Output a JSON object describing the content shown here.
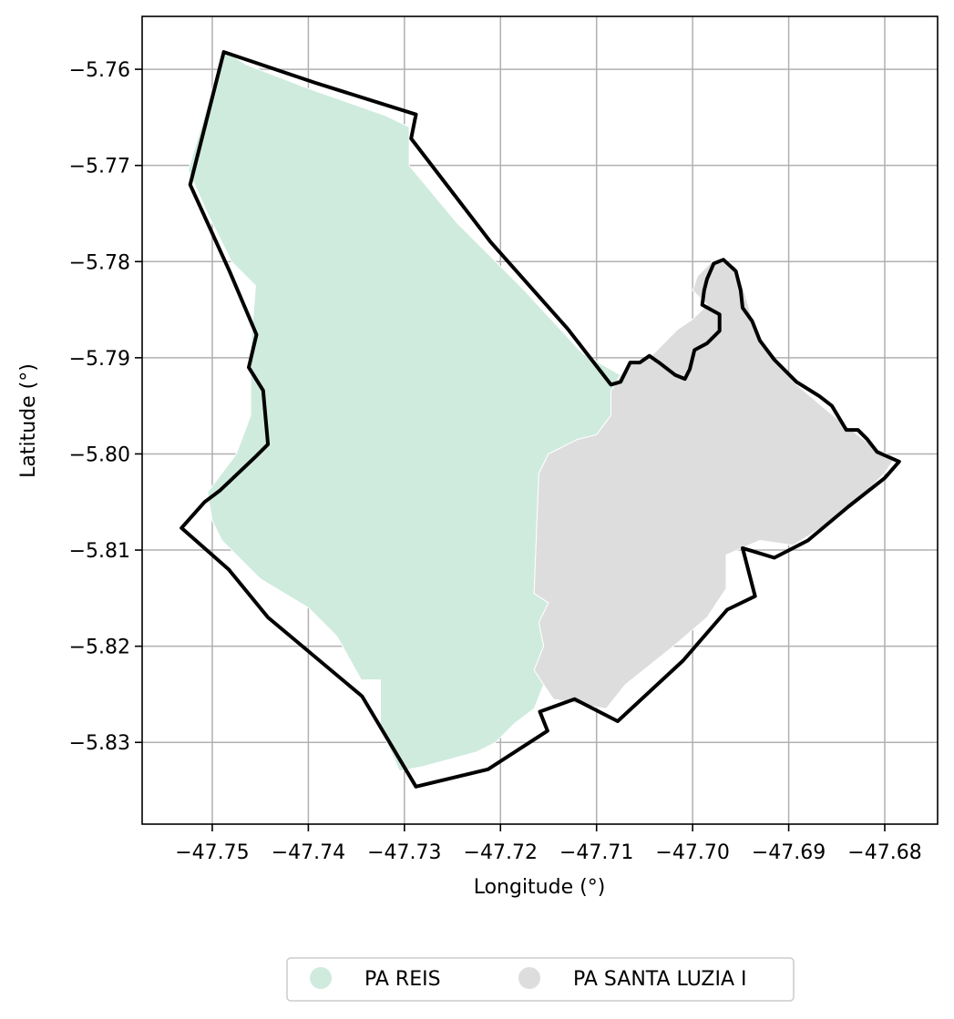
{
  "chart_data": {
    "type": "map",
    "xlabel": "Longitude (°)",
    "ylabel": "Latitude (°)",
    "xlim": [
      -47.7573,
      -47.6745
    ],
    "ylim": [
      -5.8385,
      -5.7545
    ],
    "x_ticks": [
      -47.75,
      -47.74,
      -47.73,
      -47.72,
      -47.71,
      -47.7,
      -47.69,
      -47.68
    ],
    "x_tick_labels": [
      "−47.75",
      "−47.74",
      "−47.73",
      "−47.72",
      "−47.71",
      "−47.70",
      "−47.69",
      "−47.68"
    ],
    "y_ticks": [
      -5.76,
      -5.77,
      -5.78,
      -5.79,
      -5.8,
      -5.81,
      -5.82,
      -5.83
    ],
    "y_tick_labels": [
      "−5.76",
      "−5.77",
      "−5.78",
      "−5.79",
      "−5.80",
      "−5.81",
      "−5.82",
      "−5.83"
    ],
    "grid": true,
    "legend_position": "bottom-center",
    "colors": {
      "pa_reis": "#cfebde",
      "pa_santa_luzia": "#dddddd",
      "boundary": "#000000",
      "grid": "#b0b0b0",
      "axes": "#000000"
    },
    "series": [
      {
        "name": "PA REIS",
        "color": "#cfebde",
        "polygon": [
          [
            -47.7488,
            -5.758
          ],
          [
            -47.7525,
            -5.7705
          ],
          [
            -47.7505,
            -5.775
          ],
          [
            -47.748,
            -5.78
          ],
          [
            -47.7455,
            -5.7825
          ],
          [
            -47.746,
            -5.789
          ],
          [
            -47.746,
            -5.796
          ],
          [
            -47.7475,
            -5.8
          ],
          [
            -47.7505,
            -5.804
          ],
          [
            -47.75,
            -5.807
          ],
          [
            -47.749,
            -5.809
          ],
          [
            -47.747,
            -5.811
          ],
          [
            -47.745,
            -5.813
          ],
          [
            -47.74,
            -5.816
          ],
          [
            -47.737,
            -5.819
          ],
          [
            -47.7345,
            -5.8235
          ],
          [
            -47.7325,
            -5.8235
          ],
          [
            -47.7325,
            -5.8285
          ],
          [
            -47.7305,
            -5.833
          ],
          [
            -47.728,
            -5.8325
          ],
          [
            -47.7225,
            -5.831
          ],
          [
            -47.7205,
            -5.83
          ],
          [
            -47.7185,
            -5.828
          ],
          [
            -47.7165,
            -5.8265
          ],
          [
            -47.7155,
            -5.824
          ],
          [
            -47.7165,
            -5.8225
          ],
          [
            -47.7155,
            -5.82
          ],
          [
            -47.716,
            -5.8175
          ],
          [
            -47.715,
            -5.8155
          ],
          [
            -47.7165,
            -5.8145
          ],
          [
            -47.716,
            -5.802
          ],
          [
            -47.715,
            -5.8
          ],
          [
            -47.712,
            -5.7985
          ],
          [
            -47.71,
            -5.798
          ],
          [
            -47.7085,
            -5.796
          ],
          [
            -47.7085,
            -5.7935
          ],
          [
            -47.7075,
            -5.7918
          ],
          [
            -47.7115,
            -5.7895
          ],
          [
            -47.7175,
            -5.783
          ],
          [
            -47.7245,
            -5.776
          ],
          [
            -47.7295,
            -5.77
          ],
          [
            -47.7295,
            -5.766
          ],
          [
            -47.732,
            -5.7648
          ],
          [
            -47.74,
            -5.762
          ],
          [
            -47.7465,
            -5.7595
          ]
        ]
      },
      {
        "name": "PA SANTA LUZIA I",
        "color": "#dddddd",
        "polygon": [
          [
            -47.7075,
            -5.7918
          ],
          [
            -47.7085,
            -5.7935
          ],
          [
            -47.7085,
            -5.796
          ],
          [
            -47.71,
            -5.798
          ],
          [
            -47.712,
            -5.7985
          ],
          [
            -47.715,
            -5.8
          ],
          [
            -47.716,
            -5.802
          ],
          [
            -47.7165,
            -5.8145
          ],
          [
            -47.715,
            -5.8155
          ],
          [
            -47.716,
            -5.8175
          ],
          [
            -47.7155,
            -5.82
          ],
          [
            -47.7165,
            -5.8225
          ],
          [
            -47.7155,
            -5.824
          ],
          [
            -47.7145,
            -5.8255
          ],
          [
            -47.712,
            -5.826
          ],
          [
            -47.709,
            -5.8265
          ],
          [
            -47.707,
            -5.824
          ],
          [
            -47.702,
            -5.82
          ],
          [
            -47.6985,
            -5.817
          ],
          [
            -47.6965,
            -5.814
          ],
          [
            -47.6965,
            -5.8105
          ],
          [
            -47.693,
            -5.809
          ],
          [
            -47.6895,
            -5.8095
          ],
          [
            -47.684,
            -5.806
          ],
          [
            -47.68,
            -5.802
          ],
          [
            -47.679,
            -5.8005
          ],
          [
            -47.6815,
            -5.799
          ],
          [
            -47.6835,
            -5.7975
          ],
          [
            -47.686,
            -5.7955
          ],
          [
            -47.6895,
            -5.7925
          ],
          [
            -47.6915,
            -5.79
          ],
          [
            -47.6935,
            -5.787
          ],
          [
            -47.6945,
            -5.7835
          ],
          [
            -47.6955,
            -5.7805
          ],
          [
            -47.6968,
            -5.78
          ],
          [
            -47.698,
            -5.78
          ],
          [
            -47.6995,
            -5.7815
          ],
          [
            -47.7,
            -5.783
          ],
          [
            -47.6985,
            -5.7845
          ],
          [
            -47.7,
            -5.786
          ],
          [
            -47.7015,
            -5.787
          ],
          [
            -47.7025,
            -5.788
          ],
          [
            -47.7045,
            -5.79
          ],
          [
            -47.7065,
            -5.7905
          ]
        ]
      }
    ],
    "boundary": [
      [
        -47.7488,
        -5.7582
      ],
      [
        -47.7393,
        -5.7614
      ],
      [
        -47.7288,
        -5.7647
      ],
      [
        -47.7293,
        -5.7672
      ],
      [
        -47.721,
        -5.778
      ],
      [
        -47.713,
        -5.787
      ],
      [
        -47.7085,
        -5.7928
      ],
      [
        -47.7075,
        -5.7925
      ],
      [
        -47.7065,
        -5.7905
      ],
      [
        -47.7055,
        -5.7905
      ],
      [
        -47.7045,
        -5.7898
      ],
      [
        -47.7035,
        -5.7905
      ],
      [
        -47.7018,
        -5.7918
      ],
      [
        -47.7008,
        -5.7922
      ],
      [
        -47.7003,
        -5.7912
      ],
      [
        -47.6998,
        -5.7892
      ],
      [
        -47.6985,
        -5.7885
      ],
      [
        -47.6972,
        -5.7872
      ],
      [
        -47.6972,
        -5.7855
      ],
      [
        -47.699,
        -5.7845
      ],
      [
        -47.6988,
        -5.783
      ],
      [
        -47.6985,
        -5.7818
      ],
      [
        -47.6978,
        -5.7802
      ],
      [
        -47.6968,
        -5.7798
      ],
      [
        -47.6955,
        -5.781
      ],
      [
        -47.695,
        -5.783
      ],
      [
        -47.6948,
        -5.7848
      ],
      [
        -47.6938,
        -5.7862
      ],
      [
        -47.693,
        -5.7882
      ],
      [
        -47.6915,
        -5.7902
      ],
      [
        -47.6892,
        -5.7925
      ],
      [
        -47.6868,
        -5.794
      ],
      [
        -47.6855,
        -5.795
      ],
      [
        -47.684,
        -5.7975
      ],
      [
        -47.6828,
        -5.7975
      ],
      [
        -47.6818,
        -5.7985
      ],
      [
        -47.6808,
        -5.7998
      ],
      [
        -47.6785,
        -5.8008
      ],
      [
        -47.68,
        -5.8025
      ],
      [
        -47.6838,
        -5.8055
      ],
      [
        -47.688,
        -5.809
      ],
      [
        -47.6915,
        -5.8108
      ],
      [
        -47.6948,
        -5.8098
      ],
      [
        -47.6935,
        -5.8148
      ],
      [
        -47.6964,
        -5.8162
      ],
      [
        -47.701,
        -5.8215
      ],
      [
        -47.7078,
        -5.8278
      ],
      [
        -47.7123,
        -5.8255
      ],
      [
        -47.7159,
        -5.8268
      ],
      [
        -47.7151,
        -5.8288
      ],
      [
        -47.7213,
        -5.8328
      ],
      [
        -47.7288,
        -5.8346
      ],
      [
        -47.7344,
        -5.8252
      ],
      [
        -47.7442,
        -5.817
      ],
      [
        -47.7483,
        -5.812
      ],
      [
        -47.7532,
        -5.8077
      ],
      [
        -47.7508,
        -5.805
      ],
      [
        -47.7492,
        -5.8038
      ],
      [
        -47.7455,
        -5.8003
      ],
      [
        -47.7442,
        -5.799
      ],
      [
        -47.7447,
        -5.7934
      ],
      [
        -47.7462,
        -5.791
      ],
      [
        -47.7454,
        -5.7876
      ],
      [
        -47.7482,
        -5.781
      ],
      [
        -47.7523,
        -5.772
      ],
      [
        -47.7488,
        -5.7582
      ]
    ]
  },
  "legend": {
    "items": [
      {
        "label": "PA REIS",
        "color": "#cfebde"
      },
      {
        "label": "PA SANTA LUZIA I",
        "color": "#dddddd"
      }
    ]
  }
}
